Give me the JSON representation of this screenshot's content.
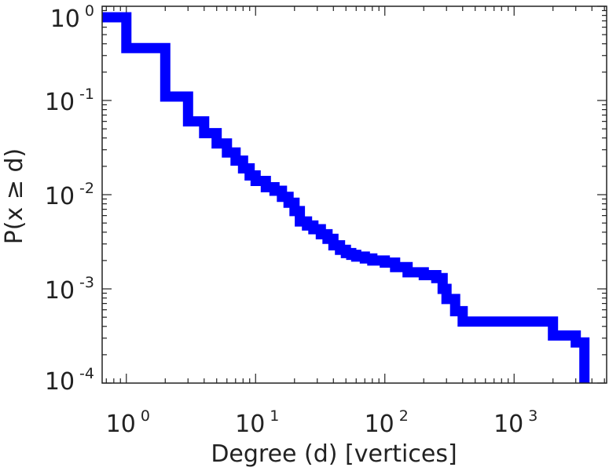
{
  "chart_data": {
    "type": "line",
    "step": "post",
    "x_scale": "log",
    "y_scale": "log",
    "xlabel": "Degree (d) [vertices]",
    "ylabel": "P(x ≥ d)",
    "xlim": [
      0.65,
      5200
    ],
    "ylim": [
      0.0001,
      1
    ],
    "grid": false,
    "x_ticks": [
      {
        "base": "10",
        "exp": "0",
        "value": 1
      },
      {
        "base": "10",
        "exp": "1",
        "value": 10
      },
      {
        "base": "10",
        "exp": "2",
        "value": 100
      },
      {
        "base": "10",
        "exp": "3",
        "value": 1000
      }
    ],
    "y_ticks": [
      {
        "base": "10",
        "exp": "0",
        "value": 1
      },
      {
        "base": "10",
        "exp": "-1",
        "value": 0.1
      },
      {
        "base": "10",
        "exp": "-2",
        "value": 0.01
      },
      {
        "base": "10",
        "exp": "-3",
        "value": 0.001
      },
      {
        "base": "10",
        "exp": "-4",
        "value": 0.0001
      }
    ],
    "series": [
      {
        "color": "#0000ff",
        "x": [
          0.65,
          1,
          2,
          3,
          4,
          5,
          6,
          7,
          8,
          9,
          10,
          12,
          14,
          16,
          18,
          20,
          22,
          25,
          28,
          32,
          36,
          40,
          45,
          50,
          55,
          60,
          70,
          80,
          100,
          120,
          150,
          200,
          250,
          280,
          300,
          350,
          400,
          2000,
          3000,
          3500
        ],
        "y": [
          1,
          0.36,
          0.11,
          0.06,
          0.045,
          0.035,
          0.028,
          0.023,
          0.019,
          0.016,
          0.014,
          0.012,
          0.011,
          0.0095,
          0.0082,
          0.0067,
          0.0052,
          0.0047,
          0.0043,
          0.0038,
          0.0034,
          0.0029,
          0.0026,
          0.0024,
          0.0023,
          0.0022,
          0.0021,
          0.002,
          0.0019,
          0.0017,
          0.0015,
          0.0014,
          0.0013,
          0.001,
          0.00078,
          0.00058,
          0.00045,
          0.00032,
          0.00027,
          0.0001
        ]
      }
    ]
  }
}
